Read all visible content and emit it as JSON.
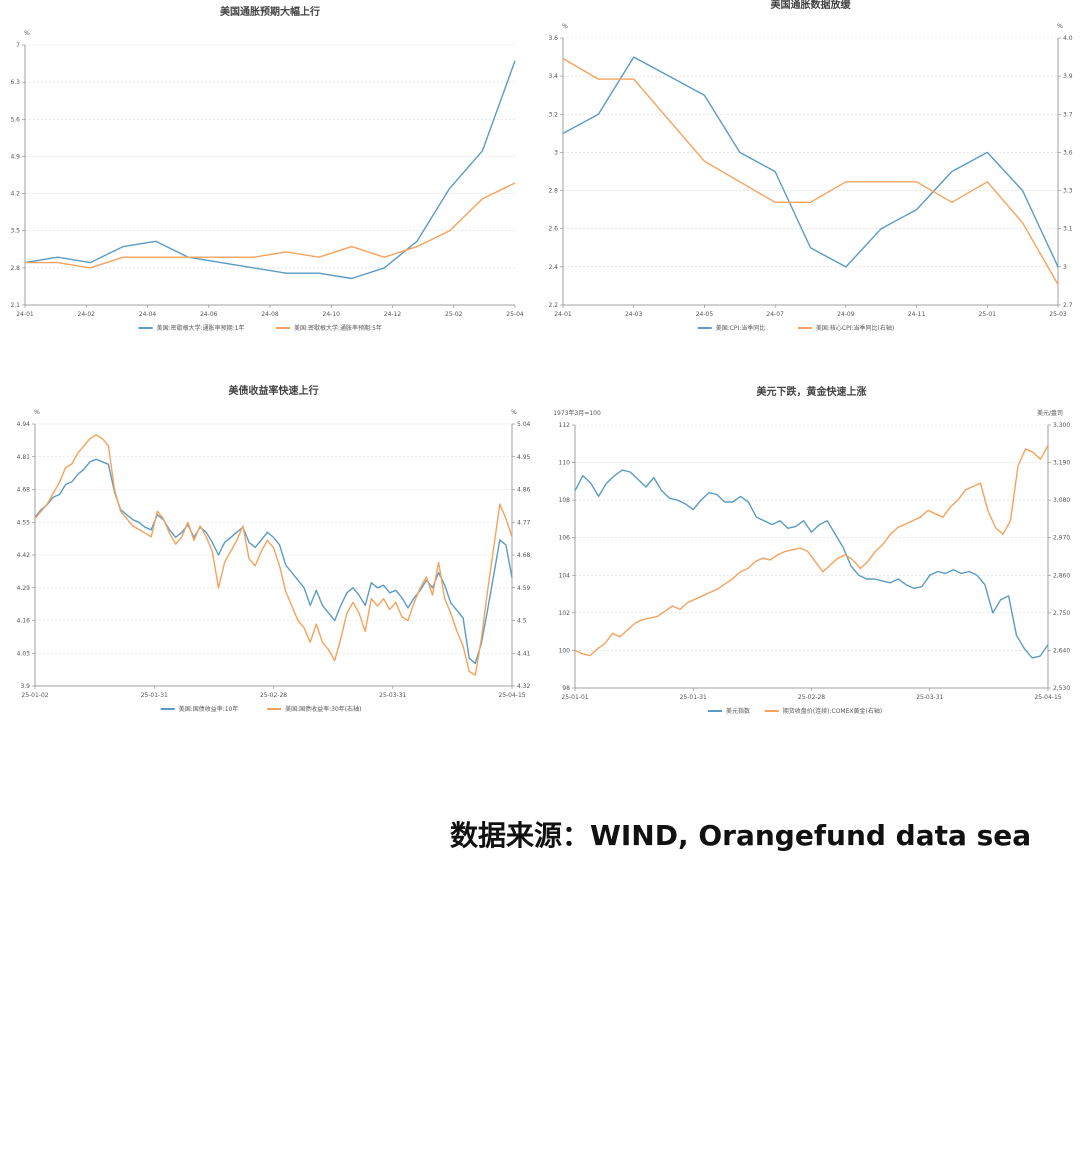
{
  "colors": {
    "blue": "#5b9bc4",
    "orange": "#f5a25d",
    "grid": "#d9d9d9",
    "axis": "#888888"
  },
  "source": "数据来源：WIND, Orangefund data sea",
  "chart_data": [
    {
      "type": "line",
      "title": "美国通胀预期大幅上行",
      "y_unit": "%",
      "x_ticks": [
        "24-01",
        "24-02",
        "24-04",
        "24-06",
        "24-08",
        "24-10",
        "24-12",
        "25-02",
        "25-04"
      ],
      "y_ticks": [
        "7",
        "6.3",
        "5.6",
        "4.9",
        "4.2",
        "3.5",
        "2.8",
        "2.1"
      ],
      "ylim": [
        2.1,
        7
      ],
      "x": [
        "24-01",
        "24-02",
        "24-03",
        "24-04",
        "24-05",
        "24-06",
        "24-07",
        "24-08",
        "24-09",
        "24-10",
        "24-11",
        "24-12",
        "25-01",
        "25-02",
        "25-03",
        "25-04"
      ],
      "series": [
        {
          "name": "美国:密歇根大学:通胀率预期:1年",
          "color": "blue",
          "values": [
            2.9,
            3.0,
            2.9,
            3.2,
            3.3,
            3.0,
            2.9,
            2.8,
            2.7,
            2.7,
            2.6,
            2.8,
            3.3,
            4.3,
            5.0,
            6.7
          ]
        },
        {
          "name": "美国:密歇根大学:通胀率预期:5年",
          "color": "orange",
          "values": [
            2.9,
            2.9,
            2.8,
            3.0,
            3.0,
            3.0,
            3.0,
            3.0,
            3.1,
            3.0,
            3.2,
            3.0,
            3.2,
            3.5,
            4.1,
            4.4
          ]
        }
      ]
    },
    {
      "type": "line",
      "title": "美国通胀数据放缓",
      "y_unit": "%",
      "y2_unit": "%",
      "x_ticks": [
        "24-01",
        "24-03",
        "24-05",
        "24-07",
        "24-09",
        "24-11",
        "25-01",
        "25-03"
      ],
      "y_ticks": [
        "3.6",
        "3.4",
        "3.2",
        "3",
        "2.8",
        "2.6",
        "2.4",
        "2.2"
      ],
      "y2_ticks": [
        "4.0",
        "3.9",
        "3.7",
        "3.6",
        "3.3",
        "3.1",
        "3",
        "2.7"
      ],
      "ylim": [
        2.2,
        3.6
      ],
      "y2lim": [
        2.7,
        4.0
      ],
      "x": [
        "24-01",
        "24-02",
        "24-03",
        "24-04",
        "24-05",
        "24-06",
        "24-07",
        "24-08",
        "24-09",
        "24-10",
        "24-11",
        "24-12",
        "25-01",
        "25-02",
        "25-03"
      ],
      "series": [
        {
          "name": "美国:CPI:当季同比",
          "color": "blue",
          "axis": "left",
          "values": [
            3.1,
            3.2,
            3.5,
            3.4,
            3.3,
            3.0,
            2.9,
            2.5,
            2.4,
            2.6,
            2.7,
            2.9,
            3.0,
            2.8,
            2.4
          ]
        },
        {
          "name": "美国:核心CPI:当季同比(右轴)",
          "color": "orange",
          "axis": "right",
          "values": [
            3.9,
            3.8,
            3.8,
            3.6,
            3.4,
            3.3,
            3.2,
            3.2,
            3.3,
            3.3,
            3.3,
            3.2,
            3.3,
            3.1,
            2.8
          ]
        }
      ]
    },
    {
      "type": "line",
      "title": "美债收益率快速上行",
      "y_unit": "%",
      "y2_unit": "%",
      "x_ticks": [
        "25-01-02",
        "25-01-31",
        "25-02-28",
        "25-03-31",
        "25-04-15"
      ],
      "y_ticks": [
        "4.94",
        "4.81",
        "4.68",
        "4.55",
        "4.42",
        "4.29",
        "4.16",
        "4.03",
        "3.9"
      ],
      "y2_ticks": [
        "5.04",
        "4.95",
        "4.86",
        "4.77",
        "4.68",
        "4.59",
        "4.5",
        "4.41",
        "4.32"
      ],
      "ylim": [
        3.9,
        4.94
      ],
      "y2lim": [
        4.32,
        5.04
      ],
      "series": [
        {
          "name": "美国:国债收益率:10年",
          "color": "blue",
          "axis": "left",
          "values": [
            4.57,
            4.6,
            4.62,
            4.65,
            4.66,
            4.7,
            4.71,
            4.74,
            4.76,
            4.79,
            4.8,
            4.79,
            4.78,
            4.67,
            4.6,
            4.58,
            4.56,
            4.55,
            4.53,
            4.52,
            4.58,
            4.56,
            4.52,
            4.49,
            4.51,
            4.54,
            4.49,
            4.53,
            4.51,
            4.47,
            4.42,
            4.47,
            4.49,
            4.51,
            4.53,
            4.47,
            4.45,
            4.48,
            4.51,
            4.49,
            4.46,
            4.38,
            4.35,
            4.32,
            4.29,
            4.22,
            4.28,
            4.22,
            4.19,
            4.16,
            4.22,
            4.27,
            4.29,
            4.26,
            4.22,
            4.31,
            4.29,
            4.3,
            4.27,
            4.28,
            4.25,
            4.21,
            4.25,
            4.28,
            4.32,
            4.29,
            4.35,
            4.3,
            4.23,
            4.2,
            4.17,
            4.01,
            3.99,
            4.07,
            4.2,
            4.34,
            4.48,
            4.46,
            4.33
          ]
        },
        {
          "name": "美国:国债收益率:30年(右轴)",
          "color": "orange",
          "axis": "right",
          "values": [
            4.78,
            4.8,
            4.82,
            4.85,
            4.88,
            4.92,
            4.93,
            4.96,
            4.98,
            5.0,
            5.01,
            5.0,
            4.98,
            4.86,
            4.8,
            4.78,
            4.76,
            4.75,
            4.74,
            4.73,
            4.8,
            4.78,
            4.74,
            4.71,
            4.73,
            4.77,
            4.72,
            4.76,
            4.73,
            4.69,
            4.59,
            4.66,
            4.69,
            4.72,
            4.76,
            4.67,
            4.65,
            4.69,
            4.72,
            4.7,
            4.65,
            4.58,
            4.54,
            4.5,
            4.48,
            4.44,
            4.49,
            4.44,
            4.42,
            4.39,
            4.45,
            4.52,
            4.55,
            4.52,
            4.47,
            4.56,
            4.54,
            4.56,
            4.53,
            4.55,
            4.51,
            4.5,
            4.55,
            4.59,
            4.62,
            4.57,
            4.66,
            4.56,
            4.52,
            4.47,
            4.43,
            4.36,
            4.35,
            4.45,
            4.58,
            4.7,
            4.82,
            4.78,
            4.73
          ]
        }
      ]
    },
    {
      "type": "line",
      "title": "美元下跌，黄金快速上涨",
      "y_unit": "1973年3月=100",
      "y2_unit": "美元/盎司",
      "x_ticks": [
        "25-01-01",
        "25-01-31",
        "25-02-28",
        "25-03-31",
        "25-04-15"
      ],
      "y_ticks": [
        "112",
        "110",
        "108",
        "106",
        "104",
        "102",
        "100",
        "98"
      ],
      "y2_ticks": [
        "3,300",
        "3,190",
        "3,080",
        "2,970",
        "2,860",
        "2,750",
        "2,640",
        "2,530"
      ],
      "ylim": [
        98,
        112
      ],
      "y2lim": [
        2530,
        3300
      ],
      "series": [
        {
          "name": "美元指数",
          "color": "blue",
          "axis": "left",
          "values": [
            108.5,
            109.3,
            108.9,
            108.2,
            108.9,
            109.3,
            109.6,
            109.5,
            109.1,
            108.7,
            109.2,
            108.5,
            108.1,
            108.0,
            107.8,
            107.5,
            108.0,
            108.4,
            108.3,
            107.9,
            107.9,
            108.2,
            107.9,
            107.1,
            106.9,
            106.7,
            106.9,
            106.5,
            106.6,
            106.9,
            106.3,
            106.7,
            106.9,
            106.2,
            105.5,
            104.5,
            104.0,
            103.8,
            103.8,
            103.7,
            103.6,
            103.8,
            103.5,
            103.3,
            103.4,
            104.0,
            104.2,
            104.1,
            104.3,
            104.1,
            104.2,
            104.0,
            103.5,
            102.0,
            102.7,
            102.9,
            100.8,
            100.1,
            99.6,
            99.7,
            100.3
          ]
        },
        {
          "name": "期货收盘价(连续):COMEX黄金(右轴)",
          "color": "orange",
          "axis": "right",
          "values": [
            2640,
            2630,
            2625,
            2645,
            2660,
            2690,
            2680,
            2700,
            2720,
            2730,
            2735,
            2740,
            2755,
            2770,
            2760,
            2780,
            2790,
            2800,
            2810,
            2820,
            2835,
            2850,
            2870,
            2880,
            2900,
            2910,
            2905,
            2920,
            2930,
            2935,
            2940,
            2930,
            2900,
            2870,
            2890,
            2910,
            2920,
            2905,
            2880,
            2900,
            2930,
            2950,
            2980,
            3000,
            3010,
            3020,
            3030,
            3050,
            3040,
            3030,
            3060,
            3080,
            3110,
            3120,
            3130,
            3050,
            3000,
            2980,
            3020,
            3180,
            3230,
            3220,
            3200,
            3240
          ]
        }
      ]
    }
  ]
}
